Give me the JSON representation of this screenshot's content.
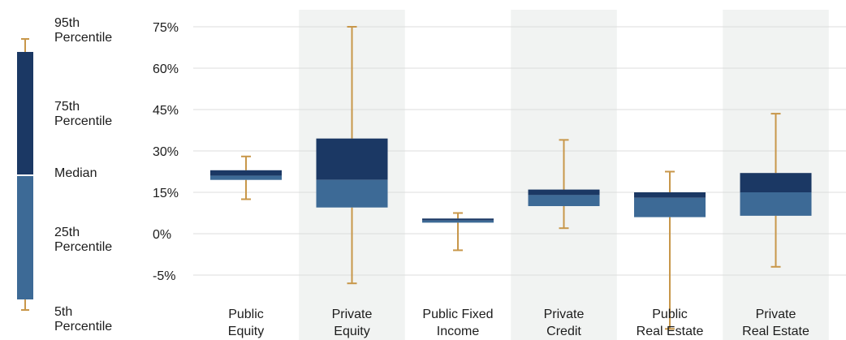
{
  "chart_data": {
    "type": "boxplot",
    "y_tick_labels": [
      "75%",
      "60%",
      "45%",
      "30%",
      "15%",
      "0%",
      "-5%"
    ],
    "categories": [
      [
        "Public",
        "Equity"
      ],
      [
        "Private",
        "Equity"
      ],
      [
        "Public Fixed",
        "Income"
      ],
      [
        "Private",
        "Credit"
      ],
      [
        "Public",
        "Real Estate"
      ],
      [
        "Private",
        "Real Estate"
      ]
    ],
    "shaded_columns": [
      false,
      true,
      false,
      true,
      false,
      true
    ],
    "boxes": [
      {
        "p5": 12.5,
        "p25": 19.5,
        "median": 21,
        "p75": 23,
        "p95": 28
      },
      {
        "p5": -6,
        "p25": 9.5,
        "median": 19.5,
        "p75": 34.5,
        "p95": 75
      },
      {
        "p5": -2,
        "p25": 4,
        "median": 4.8,
        "p75": 5.5,
        "p95": 7.5
      },
      {
        "p5": 2,
        "p25": 10,
        "median": 14,
        "p75": 16,
        "p95": 34
      },
      {
        "p5": -11.5,
        "p25": 6,
        "median": 13,
        "p75": 15,
        "p95": 22.5
      },
      {
        "p5": -4,
        "p25": 6.5,
        "median": 15,
        "p75": 22,
        "p95": 43.5
      }
    ],
    "legend": {
      "p95": [
        "95th",
        "Percentile"
      ],
      "p75": [
        "75th",
        "Percentile"
      ],
      "median": [
        "Median"
      ],
      "p25": [
        "25th",
        "Percentile"
      ],
      "p5": [
        "5th",
        "Percentile"
      ]
    },
    "colors": {
      "upper_box": "#1b3864",
      "lower_box": "#3d6a96",
      "whisker": "#c8974a",
      "column_shade": "#f1f3f2",
      "grid": "#dcdcdc"
    }
  }
}
